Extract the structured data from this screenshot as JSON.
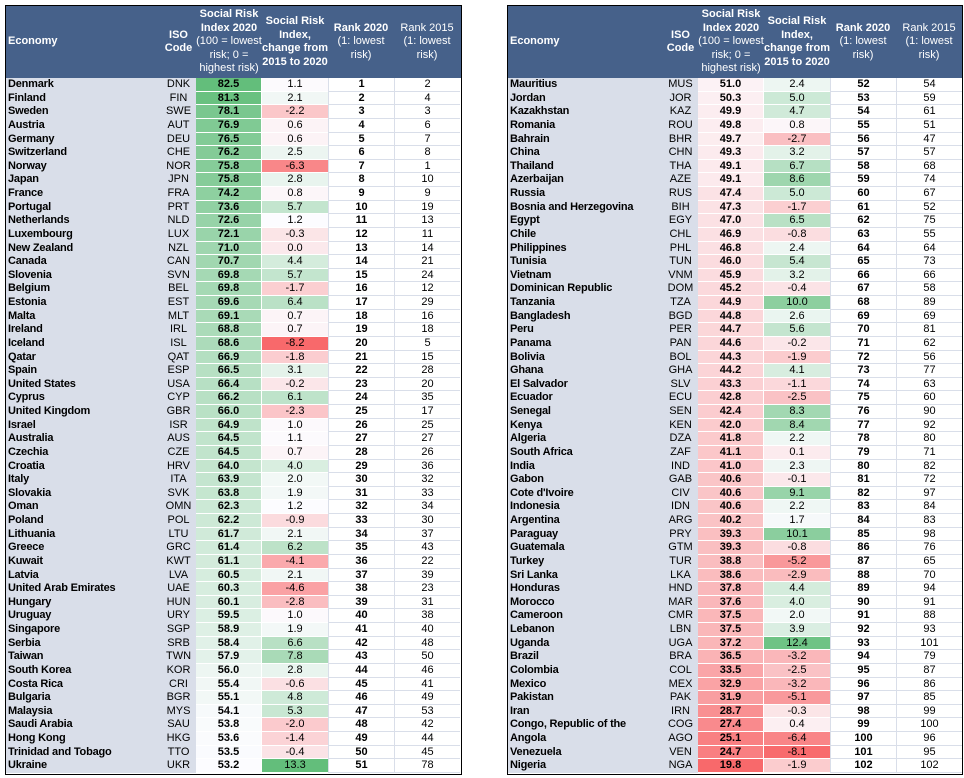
{
  "headers": {
    "economy": "Economy",
    "iso": "ISO Code",
    "score_title": "Social Risk Index 2020",
    "score_note": "(100 = lowest risk; 0 = highest risk)",
    "change": "Social Risk Index, change from 2015 to 2020",
    "rank2020": "Rank 2020",
    "rank2020_note": "(1: lowest risk)",
    "rank2015": "Rank 2015 (1: lowest risk)"
  },
  "colors": {
    "header_bg": "#46618a",
    "economy_bg": "#d9dee9",
    "scale_low": "#f8696b",
    "scale_mid": "#fcfcff",
    "scale_high": "#63be7b"
  },
  "left": [
    [
      "Denmark",
      "DNK",
      "82.5",
      "1.1",
      "1",
      "2"
    ],
    [
      "Finland",
      "FIN",
      "81.3",
      "2.1",
      "2",
      "4"
    ],
    [
      "Sweden",
      "SWE",
      "78.1",
      "-2.2",
      "3",
      "3"
    ],
    [
      "Austria",
      "AUT",
      "76.9",
      "0.6",
      "4",
      "6"
    ],
    [
      "Germany",
      "DEU",
      "76.5",
      "0.6",
      "5",
      "7"
    ],
    [
      "Switzerland",
      "CHE",
      "76.2",
      "2.5",
      "6",
      "8"
    ],
    [
      "Norway",
      "NOR",
      "75.8",
      "-6.3",
      "7",
      "1"
    ],
    [
      "Japan",
      "JPN",
      "75.8",
      "2.8",
      "8",
      "10"
    ],
    [
      "France",
      "FRA",
      "74.2",
      "0.8",
      "9",
      "9"
    ],
    [
      "Portugal",
      "PRT",
      "73.6",
      "5.7",
      "10",
      "19"
    ],
    [
      "Netherlands",
      "NLD",
      "72.6",
      "1.2",
      "11",
      "13"
    ],
    [
      "Luxembourg",
      "LUX",
      "72.1",
      "-0.3",
      "12",
      "11"
    ],
    [
      "New Zealand",
      "NZL",
      "71.0",
      "0.0",
      "13",
      "14"
    ],
    [
      "Canada",
      "CAN",
      "70.7",
      "4.4",
      "14",
      "21"
    ],
    [
      "Slovenia",
      "SVN",
      "69.8",
      "5.7",
      "15",
      "24"
    ],
    [
      "Belgium",
      "BEL",
      "69.8",
      "-1.7",
      "16",
      "12"
    ],
    [
      "Estonia",
      "EST",
      "69.6",
      "6.4",
      "17",
      "29"
    ],
    [
      "Malta",
      "MLT",
      "69.1",
      "0.7",
      "18",
      "16"
    ],
    [
      "Ireland",
      "IRL",
      "68.8",
      "0.7",
      "19",
      "18"
    ],
    [
      "Iceland",
      "ISL",
      "68.6",
      "-8.2",
      "20",
      "5"
    ],
    [
      "Qatar",
      "QAT",
      "66.9",
      "-1.8",
      "21",
      "15"
    ],
    [
      "Spain",
      "ESP",
      "66.5",
      "3.1",
      "22",
      "28"
    ],
    [
      "United States",
      "USA",
      "66.4",
      "-0.2",
      "23",
      "20"
    ],
    [
      "Cyprus",
      "CYP",
      "66.2",
      "6.1",
      "24",
      "35"
    ],
    [
      "United Kingdom",
      "GBR",
      "66.0",
      "-2.3",
      "25",
      "17"
    ],
    [
      "Israel",
      "ISR",
      "64.9",
      "1.0",
      "26",
      "25"
    ],
    [
      "Australia",
      "AUS",
      "64.5",
      "1.1",
      "27",
      "27"
    ],
    [
      "Czechia",
      "CZE",
      "64.5",
      "0.7",
      "28",
      "26"
    ],
    [
      "Croatia",
      "HRV",
      "64.0",
      "4.0",
      "29",
      "36"
    ],
    [
      "Italy",
      "ITA",
      "63.9",
      "2.0",
      "30",
      "32"
    ],
    [
      "Slovakia",
      "SVK",
      "63.8",
      "1.9",
      "31",
      "33"
    ],
    [
      "Oman",
      "OMN",
      "62.3",
      "1.2",
      "32",
      "34"
    ],
    [
      "Poland",
      "POL",
      "62.2",
      "-0.9",
      "33",
      "30"
    ],
    [
      "Lithuania",
      "LTU",
      "61.7",
      "2.1",
      "34",
      "37"
    ],
    [
      "Greece",
      "GRC",
      "61.4",
      "6.2",
      "35",
      "43"
    ],
    [
      "Kuwait",
      "KWT",
      "61.1",
      "-4.1",
      "36",
      "22"
    ],
    [
      "Latvia",
      "LVA",
      "60.5",
      "2.1",
      "37",
      "39"
    ],
    [
      "United Arab Emirates",
      "UAE",
      "60.3",
      "-4.6",
      "38",
      "23"
    ],
    [
      "Hungary",
      "HUN",
      "60.1",
      "-2.8",
      "39",
      "31"
    ],
    [
      "Uruguay",
      "URY",
      "59.5",
      "1.0",
      "40",
      "38"
    ],
    [
      "Singapore",
      "SGP",
      "58.9",
      "1.9",
      "41",
      "40"
    ],
    [
      "Serbia",
      "SRB",
      "58.4",
      "6.6",
      "42",
      "48"
    ],
    [
      "Taiwan",
      "TWN",
      "57.9",
      "7.8",
      "43",
      "50"
    ],
    [
      "South Korea",
      "KOR",
      "56.0",
      "2.8",
      "44",
      "46"
    ],
    [
      "Costa Rica",
      "CRI",
      "55.4",
      "-0.6",
      "45",
      "41"
    ],
    [
      "Bulgaria",
      "BGR",
      "55.1",
      "4.8",
      "46",
      "49"
    ],
    [
      "Malaysia",
      "MYS",
      "54.1",
      "5.3",
      "47",
      "53"
    ],
    [
      "Saudi Arabia",
      "SAU",
      "53.8",
      "-2.0",
      "48",
      "42"
    ],
    [
      "Hong Kong",
      "HKG",
      "53.6",
      "-1.4",
      "49",
      "44"
    ],
    [
      "Trinidad and Tobago",
      "TTO",
      "53.5",
      "-0.4",
      "50",
      "45"
    ],
    [
      "Ukraine",
      "UKR",
      "53.2",
      "13.3",
      "51",
      "78"
    ]
  ],
  "right": [
    [
      "Mauritius",
      "MUS",
      "51.0",
      "2.4",
      "52",
      "54"
    ],
    [
      "Jordan",
      "JOR",
      "50.3",
      "5.0",
      "53",
      "59"
    ],
    [
      "Kazakhstan",
      "KAZ",
      "49.9",
      "4.7",
      "54",
      "61"
    ],
    [
      "Romania",
      "ROU",
      "49.8",
      "0.8",
      "55",
      "51"
    ],
    [
      "Bahrain",
      "BHR",
      "49.7",
      "-2.7",
      "56",
      "47"
    ],
    [
      "China",
      "CHN",
      "49.3",
      "3.2",
      "57",
      "57"
    ],
    [
      "Thailand",
      "THA",
      "49.1",
      "6.7",
      "58",
      "68"
    ],
    [
      "Azerbaijan",
      "AZE",
      "49.1",
      "8.6",
      "59",
      "74"
    ],
    [
      "Russia",
      "RUS",
      "47.4",
      "5.0",
      "60",
      "67"
    ],
    [
      "Bosnia and Herzegovina",
      "BIH",
      "47.3",
      "-1.7",
      "61",
      "52"
    ],
    [
      "Egypt",
      "EGY",
      "47.0",
      "6.5",
      "62",
      "75"
    ],
    [
      "Chile",
      "CHL",
      "46.9",
      "-0.8",
      "63",
      "55"
    ],
    [
      "Philippines",
      "PHL",
      "46.8",
      "2.4",
      "64",
      "64"
    ],
    [
      "Tunisia",
      "TUN",
      "46.0",
      "5.4",
      "65",
      "73"
    ],
    [
      "Vietnam",
      "VNM",
      "45.9",
      "3.2",
      "66",
      "66"
    ],
    [
      "Dominican Republic",
      "DOM",
      "45.2",
      "-0.4",
      "67",
      "58"
    ],
    [
      "Tanzania",
      "TZA",
      "44.9",
      "10.0",
      "68",
      "89"
    ],
    [
      "Bangladesh",
      "BGD",
      "44.8",
      "2.6",
      "69",
      "69"
    ],
    [
      "Peru",
      "PER",
      "44.7",
      "5.6",
      "70",
      "81"
    ],
    [
      "Panama",
      "PAN",
      "44.6",
      "-0.2",
      "71",
      "62"
    ],
    [
      "Bolivia",
      "BOL",
      "44.3",
      "-1.9",
      "72",
      "56"
    ],
    [
      "Ghana",
      "GHA",
      "44.2",
      "4.1",
      "73",
      "77"
    ],
    [
      "El Salvador",
      "SLV",
      "43.3",
      "-1.1",
      "74",
      "63"
    ],
    [
      "Ecuador",
      "ECU",
      "42.8",
      "-2.5",
      "75",
      "60"
    ],
    [
      "Senegal",
      "SEN",
      "42.4",
      "8.3",
      "76",
      "90"
    ],
    [
      "Kenya",
      "KEN",
      "42.0",
      "8.4",
      "77",
      "92"
    ],
    [
      "Algeria",
      "DZA",
      "41.8",
      "2.2",
      "78",
      "80"
    ],
    [
      "South Africa",
      "ZAF",
      "41.1",
      "0.1",
      "79",
      "71"
    ],
    [
      "India",
      "IND",
      "41.0",
      "2.3",
      "80",
      "82"
    ],
    [
      "Gabon",
      "GAB",
      "40.6",
      "-0.1",
      "81",
      "72"
    ],
    [
      "Cote d'Ivoire",
      "CIV",
      "40.6",
      "9.1",
      "82",
      "97"
    ],
    [
      "Indonesia",
      "IDN",
      "40.6",
      "2.2",
      "83",
      "84"
    ],
    [
      "Argentina",
      "ARG",
      "40.2",
      "1.7",
      "84",
      "83"
    ],
    [
      "Paraguay",
      "PRY",
      "39.3",
      "10.1",
      "85",
      "98"
    ],
    [
      "Guatemala",
      "GTM",
      "39.3",
      "-0.8",
      "86",
      "76"
    ],
    [
      "Turkey",
      "TUR",
      "38.8",
      "-5.2",
      "87",
      "65"
    ],
    [
      "Sri Lanka",
      "LKA",
      "38.6",
      "-2.9",
      "88",
      "70"
    ],
    [
      "Honduras",
      "HND",
      "37.8",
      "4.4",
      "89",
      "94"
    ],
    [
      "Morocco",
      "MAR",
      "37.6",
      "4.0",
      "90",
      "91"
    ],
    [
      "Cameroon",
      "CMR",
      "37.5",
      "2.0",
      "91",
      "88"
    ],
    [
      "Lebanon",
      "LBN",
      "37.5",
      "3.9",
      "92",
      "93"
    ],
    [
      "Uganda",
      "UGA",
      "37.2",
      "12.4",
      "93",
      "101"
    ],
    [
      "Brazil",
      "BRA",
      "36.5",
      "-3.2",
      "94",
      "79"
    ],
    [
      "Colombia",
      "COL",
      "33.5",
      "-2.5",
      "95",
      "87"
    ],
    [
      "Mexico",
      "MEX",
      "32.9",
      "-3.2",
      "96",
      "86"
    ],
    [
      "Pakistan",
      "PAK",
      "31.9",
      "-5.1",
      "97",
      "85"
    ],
    [
      "Iran",
      "IRN",
      "28.7",
      "-0.3",
      "98",
      "99"
    ],
    [
      "Congo, Republic of the",
      "COG",
      "27.4",
      "0.4",
      "99",
      "100"
    ],
    [
      "Angola",
      "AGO",
      "25.1",
      "-6.4",
      "100",
      "96"
    ],
    [
      "Venezuela",
      "VEN",
      "24.7",
      "-8.1",
      "101",
      "95"
    ],
    [
      "Nigeria",
      "NGA",
      "19.8",
      "-1.9",
      "102",
      "102"
    ]
  ]
}
